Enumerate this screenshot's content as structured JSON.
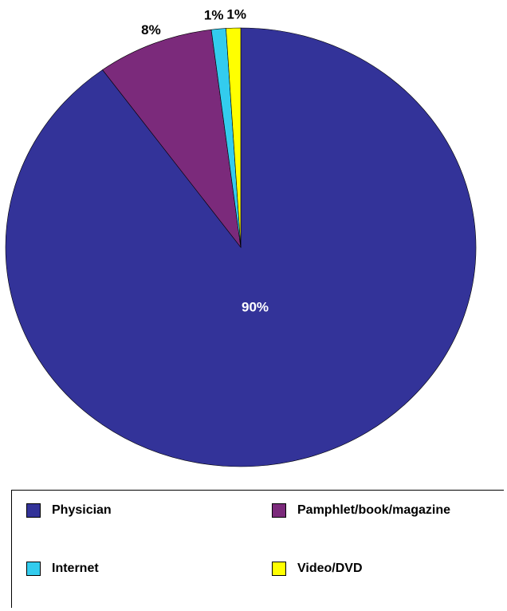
{
  "chart_data": {
    "type": "pie",
    "title": "",
    "start_angle_deg": 0,
    "direction": "clockwise",
    "legend_position": "bottom",
    "slices": [
      {
        "label": "Physician",
        "value": 90,
        "value_label": "90%",
        "color": "#333399",
        "label_color": "#ffffff"
      },
      {
        "label": "Pamphlet/book/magazine",
        "value": 8,
        "value_label": "8%",
        "color": "#7b2a7b",
        "label_color": "#000000"
      },
      {
        "label": "Internet",
        "value": 1,
        "value_label": "1%",
        "color": "#33ccee",
        "label_color": "#000000"
      },
      {
        "label": "Video/DVD",
        "value": 1,
        "value_label": "1%",
        "color": "#ffff00",
        "label_color": "#000000"
      }
    ]
  },
  "legend": {
    "items": [
      {
        "label": "Physician",
        "color": "#333399"
      },
      {
        "label": "Pamphlet/book/magazine",
        "color": "#7b2a7b"
      },
      {
        "label": "Internet",
        "color": "#33ccee"
      },
      {
        "label": "Video/DVD",
        "color": "#ffff00"
      }
    ]
  }
}
